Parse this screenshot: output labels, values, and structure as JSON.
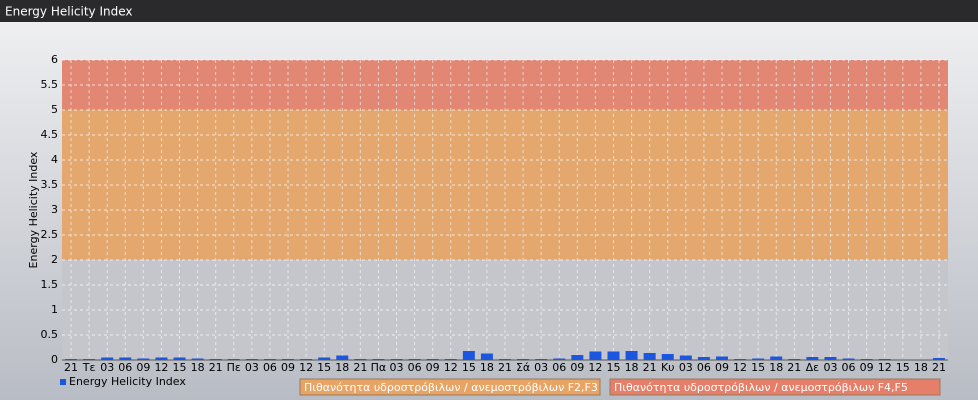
{
  "header": {
    "title": "Energy Helicity Index"
  },
  "chart_data": {
    "type": "bar",
    "y_label": "Energy Helicity Index",
    "categories": [
      "21",
      "Τε",
      "03",
      "06",
      "09",
      "12",
      "15",
      "18",
      "21",
      "Πε",
      "03",
      "06",
      "09",
      "12",
      "15",
      "18",
      "21",
      "Πα",
      "03",
      "06",
      "09",
      "12",
      "15",
      "18",
      "21",
      "Σά",
      "03",
      "06",
      "09",
      "12",
      "15",
      "18",
      "21",
      "Κυ",
      "03",
      "06",
      "09",
      "12",
      "15",
      "18",
      "21",
      "Δε",
      "03",
      "06",
      "09",
      "12",
      "15",
      "18",
      "21"
    ],
    "series": [
      {
        "name": "Energy Helicity Index",
        "color": "#1a56e0",
        "values": [
          0.02,
          0.02,
          0.05,
          0.05,
          0.03,
          0.05,
          0.05,
          0.03,
          0.02,
          0.02,
          0.02,
          0.02,
          0.02,
          0.02,
          0.05,
          0.09,
          0.02,
          0.02,
          0.02,
          0.02,
          0.02,
          0.02,
          0.18,
          0.13,
          0.02,
          0.02,
          0.02,
          0.03,
          0.1,
          0.17,
          0.17,
          0.18,
          0.14,
          0.12,
          0.09,
          0.06,
          0.07,
          0.02,
          0.03,
          0.07,
          0.02,
          0.06,
          0.06,
          0.03,
          0.02,
          0.02,
          0.01,
          0.01,
          0.04
        ]
      }
    ],
    "bands": [
      {
        "name": "Πιθανότητα υδροστρόβιλων / ανεμοστρόβιλων F2,F3",
        "from": 2,
        "to": 5,
        "color": "#e8a464"
      },
      {
        "name": "Πιθανότητα υδροστρόβιλων / ανεμοστρόβιλων F4,F5",
        "from": 5,
        "to": 6,
        "color": "#e57f6a"
      }
    ],
    "ylim": [
      0,
      6
    ],
    "yticks": [
      0,
      0.5,
      1,
      1.5,
      2,
      2.5,
      3,
      3.5,
      4,
      4.5,
      5,
      5.5,
      6
    ],
    "grid": true
  }
}
